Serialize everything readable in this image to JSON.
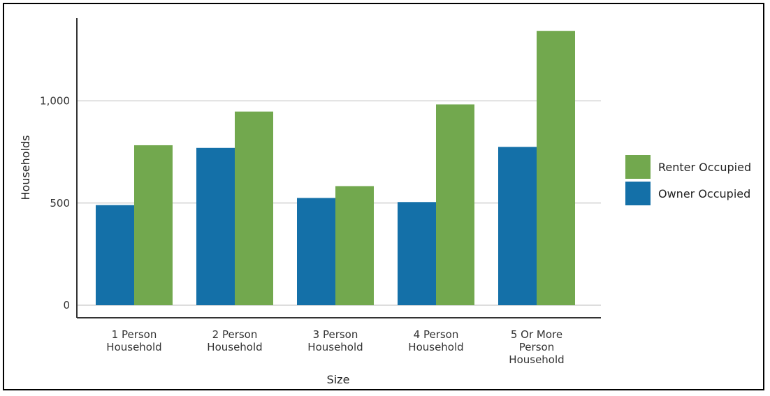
{
  "chart_data": {
    "type": "bar",
    "title": "",
    "xlabel": "Size",
    "ylabel": "Households",
    "categories": [
      [
        "1 Person",
        "Household"
      ],
      [
        "2 Person",
        "Household"
      ],
      [
        "3 Person",
        "Household"
      ],
      [
        "4 Person",
        "Household"
      ],
      [
        "5 Or More",
        "Person",
        "Household"
      ]
    ],
    "series": [
      {
        "name": "Owner Occupied",
        "color": "#1470a8",
        "values": [
          490,
          770,
          525,
          505,
          775
        ]
      },
      {
        "name": "Renter Occupied",
        "color": "#72a84e",
        "values": [
          783,
          948,
          583,
          983,
          1343
        ]
      }
    ],
    "ylim": [
      0,
      1400
    ],
    "yticks": [
      0,
      500,
      1000
    ],
    "ytick_labels": [
      "0",
      "500",
      "1,000"
    ],
    "grid": true,
    "legend": {
      "position": "right",
      "order": [
        "Renter Occupied",
        "Owner Occupied"
      ]
    }
  }
}
